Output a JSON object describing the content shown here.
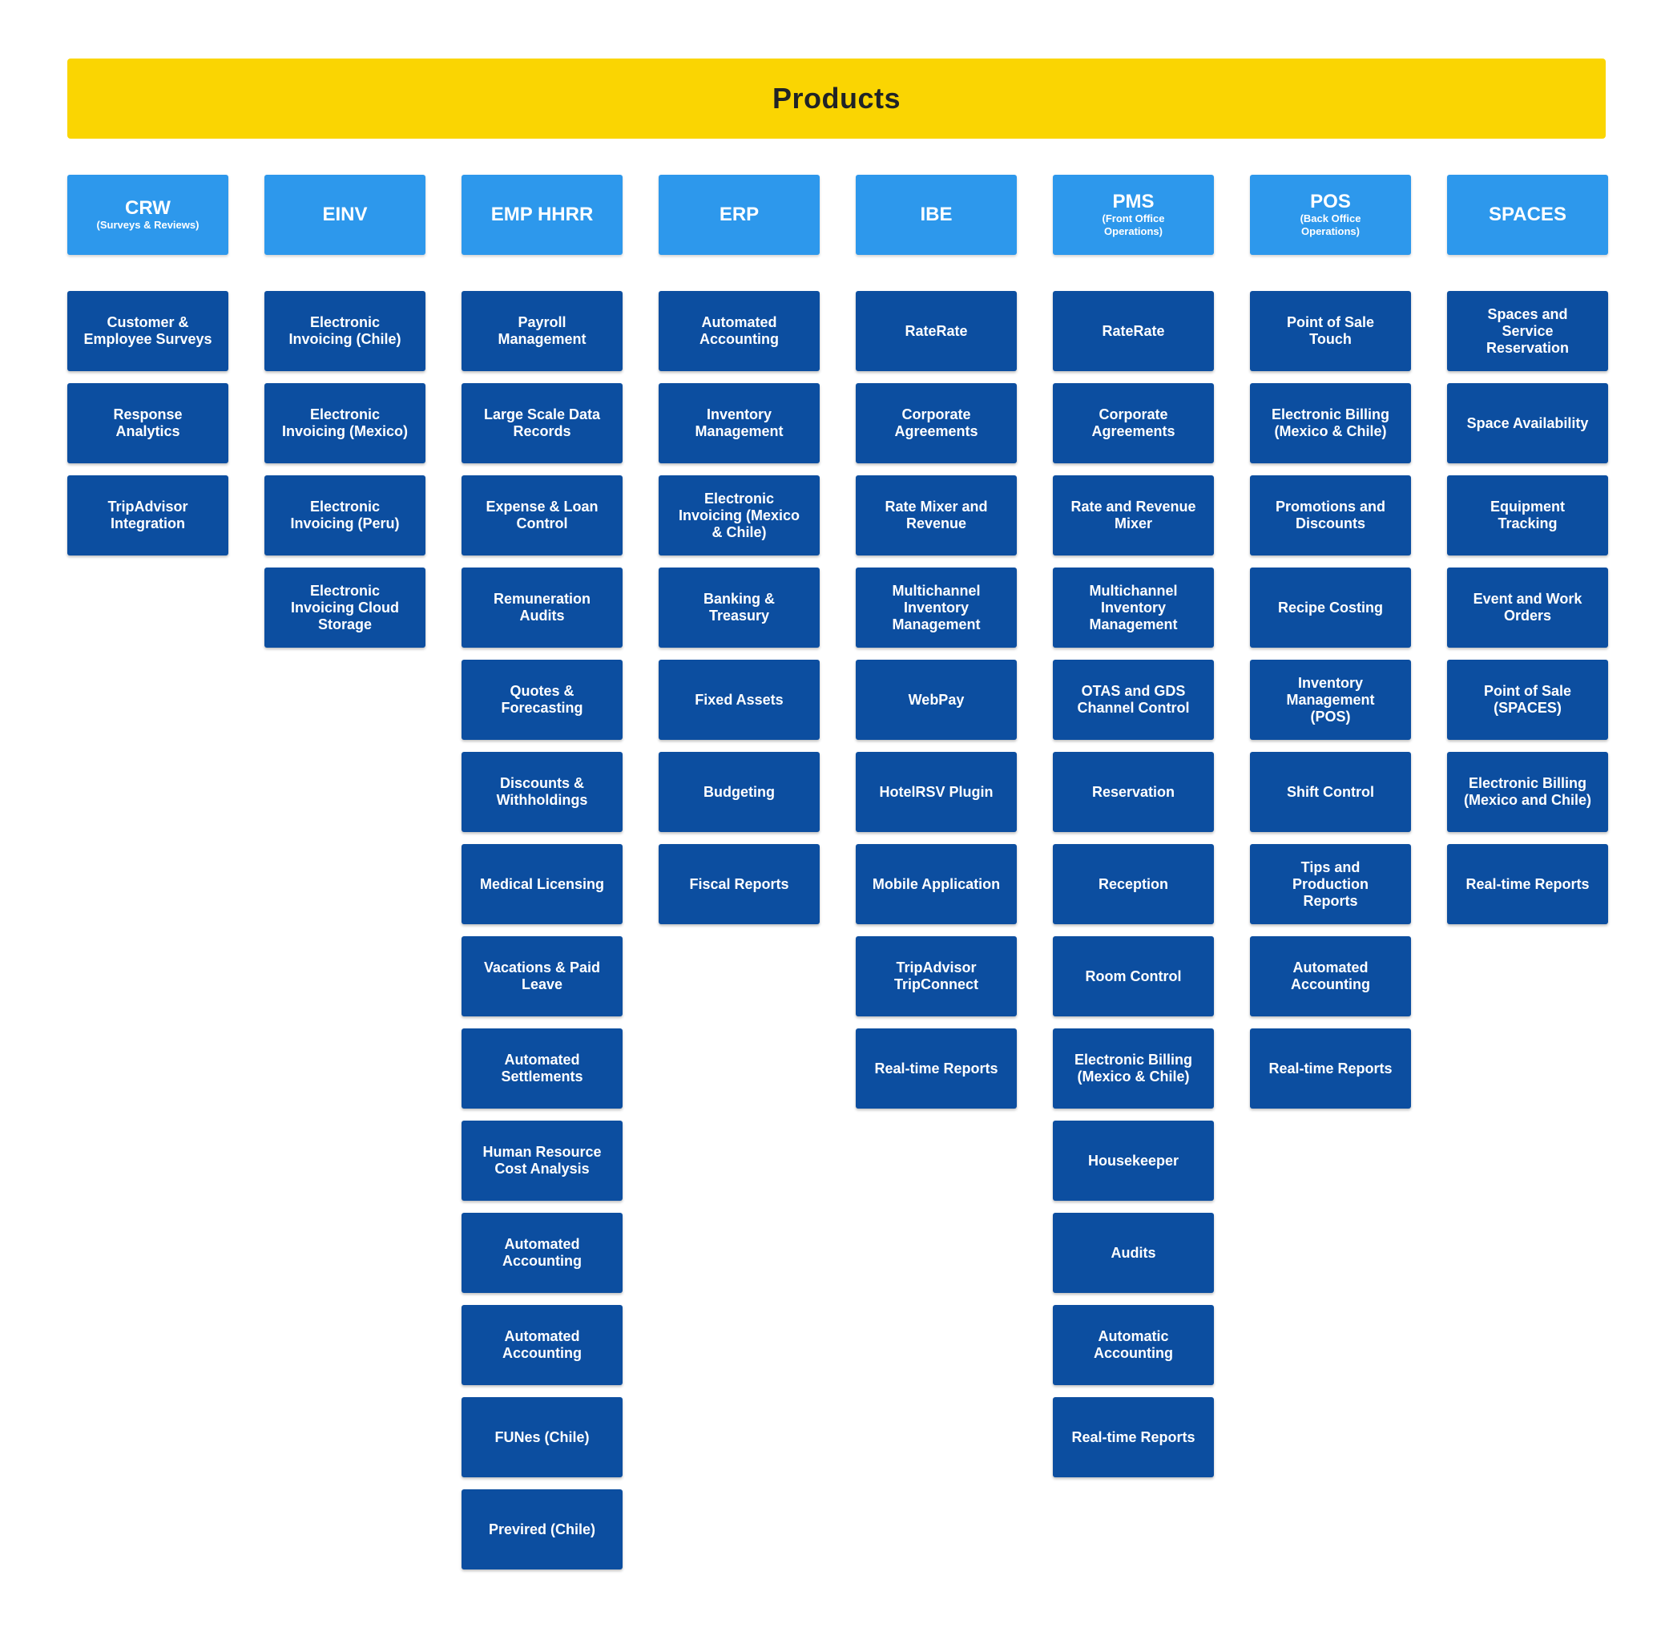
{
  "title": "Products",
  "columns": [
    {
      "name": "CRW",
      "subtitle": "(Surveys & Reviews)",
      "items": [
        "Customer & Employee Surveys",
        "Response Analytics",
        "TripAdvisor Integration"
      ]
    },
    {
      "name": "EINV",
      "subtitle": "",
      "items": [
        "Electronic Invoicing (Chile)",
        "Electronic Invoicing (Mexico)",
        "Electronic Invoicing (Peru)",
        "Electronic Invoicing Cloud Storage"
      ]
    },
    {
      "name": "EMP HHRR",
      "subtitle": "",
      "items": [
        "Payroll Management",
        "Large Scale Data Records",
        "Expense & Loan Control",
        "Remuneration Audits",
        "Quotes & Forecasting",
        "Discounts & Withholdings",
        "Medical Licensing",
        "Vacations & Paid Leave",
        "Automated Settlements",
        "Human Resource Cost Analysis",
        "Automated Accounting",
        "Automated Accounting",
        "FUNes (Chile)",
        "Previred (Chile)"
      ]
    },
    {
      "name": "ERP",
      "subtitle": "",
      "items": [
        "Automated Accounting",
        "Inventory Management",
        "Electronic Invoicing (Mexico & Chile)",
        "Banking & Treasury",
        "Fixed Assets",
        "Budgeting",
        "Fiscal Reports"
      ]
    },
    {
      "name": "IBE",
      "subtitle": "",
      "items": [
        "RateRate",
        "Corporate Agreements",
        "Rate Mixer and Revenue",
        "Multichannel Inventory Management",
        "WebPay",
        "HotelRSV Plugin",
        "Mobile Application",
        "TripAdvisor TripConnect",
        "Real-time Reports"
      ]
    },
    {
      "name": "PMS",
      "subtitle": "(Front Office Operations)",
      "items": [
        "RateRate",
        "Corporate Agreements",
        "Rate and Revenue Mixer",
        "Multichannel Inventory Management",
        "OTAS and GDS Channel Control",
        "Reservation",
        "Reception",
        "Room Control",
        "Electronic Billing (Mexico & Chile)",
        "Housekeeper",
        "Audits",
        "Automatic Accounting",
        "Real-time Reports"
      ]
    },
    {
      "name": "POS",
      "subtitle": "(Back Office Operations)",
      "items": [
        "Point of Sale Touch",
        "Electronic Billing (Mexico & Chile)",
        "Promotions and Discounts",
        "Recipe Costing",
        "Inventory Management (POS)",
        "Shift Control",
        "Tips and Production Reports",
        "Automated Accounting",
        "Real-time Reports"
      ]
    },
    {
      "name": "SPACES",
      "subtitle": "",
      "items": [
        "Spaces and Service Reservation",
        "Space Availability",
        "Equipment Tracking",
        "Event and Work Orders",
        "Point of Sale (SPACES)",
        "Electronic Billing (Mexico and Chile)",
        "Real-time Reports"
      ]
    }
  ]
}
